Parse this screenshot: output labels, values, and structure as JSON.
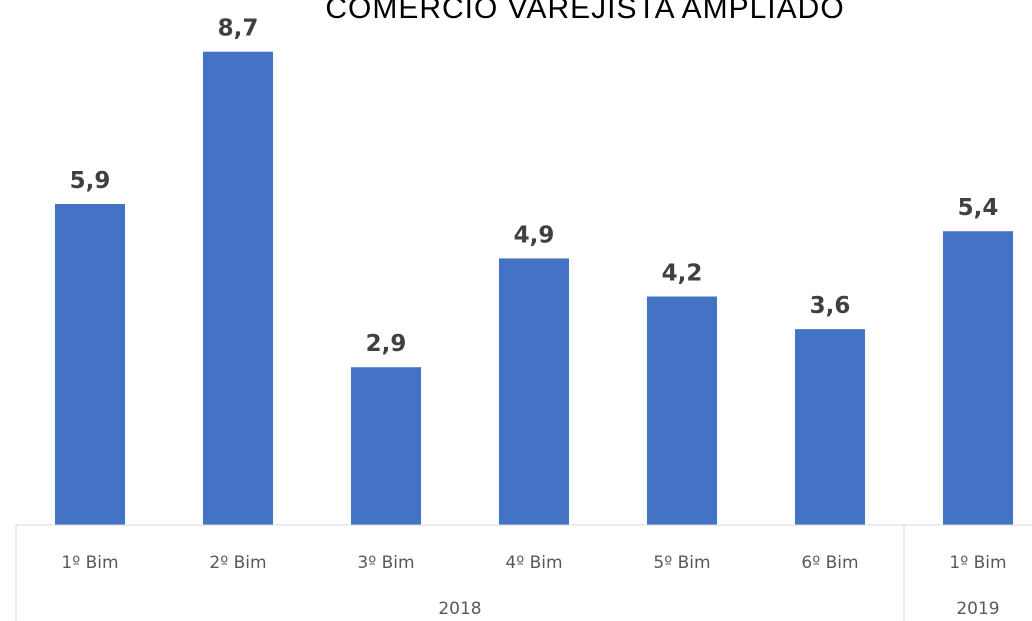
{
  "chart_data": {
    "type": "bar",
    "title": "COMÉRCIO VAREJISTA AMPLIADO",
    "categories": [
      "1º Bim",
      "2º Bim",
      "3º Bim",
      "4º Bim",
      "5º Bim",
      "6º Bim",
      "1º Bim"
    ],
    "category_groups": [
      {
        "label": "2018",
        "count": 6
      },
      {
        "label": "2019",
        "count": 1
      }
    ],
    "values": [
      5.9,
      8.7,
      2.9,
      4.9,
      4.2,
      3.6,
      5.4
    ],
    "value_labels": [
      "5,9",
      "8,7",
      "2,9",
      "4,9",
      "4,2",
      "3,6",
      "5,4"
    ],
    "ylim": [
      0,
      10
    ],
    "grid": false,
    "legend": "none",
    "colors": {
      "bar": "#4472C4",
      "axis": "#D9D9D9",
      "label": "#404040",
      "tick": "#595959"
    }
  }
}
